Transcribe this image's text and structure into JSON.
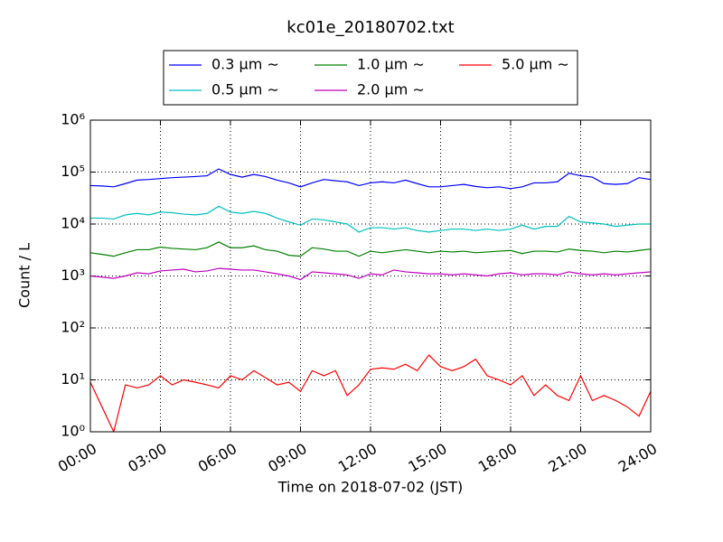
{
  "chart_data": {
    "type": "line",
    "title": "kc01e_20180702.txt",
    "xlabel": "Time on 2018-07-02 (JST)",
    "ylabel": "Count / L",
    "log_y": true,
    "grid": true,
    "legend": "upper center",
    "x": [
      0,
      0.5,
      1,
      1.5,
      2,
      2.5,
      3,
      3.5,
      4,
      4.5,
      5,
      5.5,
      6,
      6.5,
      7,
      7.5,
      8,
      8.5,
      9,
      9.5,
      10,
      10.5,
      11,
      11.5,
      12,
      12.5,
      13,
      13.5,
      14,
      14.5,
      15,
      15.5,
      16,
      16.5,
      17,
      17.5,
      18,
      18.5,
      19,
      19.5,
      20,
      20.5,
      21,
      21.5,
      22,
      22.5,
      23,
      23.5,
      24
    ],
    "xlim": [
      0,
      24
    ],
    "xticks": [
      {
        "value": 0,
        "label": "00:00"
      },
      {
        "value": 3,
        "label": "03:00"
      },
      {
        "value": 6,
        "label": "06:00"
      },
      {
        "value": 9,
        "label": "09:00"
      },
      {
        "value": 12,
        "label": "12:00"
      },
      {
        "value": 15,
        "label": "15:00"
      },
      {
        "value": 18,
        "label": "18:00"
      },
      {
        "value": 21,
        "label": "21:00"
      },
      {
        "value": 24,
        "label": "24:00"
      }
    ],
    "ylim": [
      1,
      1000000
    ],
    "yticks": [
      {
        "value": 1,
        "label": "10⁰"
      },
      {
        "value": 10,
        "label": "10¹"
      },
      {
        "value": 100,
        "label": "10²"
      },
      {
        "value": 1000,
        "label": "10³"
      },
      {
        "value": 10000,
        "label": "10⁴"
      },
      {
        "value": 100000,
        "label": "10⁵"
      },
      {
        "value": 1000000,
        "label": "10⁶"
      }
    ],
    "series": [
      {
        "name": "0.3 μm ∼",
        "color": "#0000ff",
        "values": [
          55000,
          54000,
          52000,
          60000,
          70000,
          72000,
          75000,
          78000,
          80000,
          82000,
          85000,
          115000,
          90000,
          80000,
          90000,
          82000,
          70000,
          62000,
          52000,
          62000,
          72000,
          68000,
          65000,
          55000,
          62000,
          65000,
          62000,
          70000,
          60000,
          52000,
          52000,
          55000,
          58000,
          53000,
          50000,
          52000,
          48000,
          52000,
          62000,
          62000,
          65000,
          95000,
          85000,
          80000,
          60000,
          58000,
          60000,
          78000,
          72000
        ]
      },
      {
        "name": "0.5 μm ∼",
        "color": "#00bfbf",
        "values": [
          13000,
          13000,
          12500,
          15000,
          16000,
          15000,
          17000,
          16500,
          15500,
          15000,
          16000,
          22000,
          17000,
          16000,
          17500,
          16000,
          13000,
          11000,
          9500,
          12500,
          12000,
          11000,
          10000,
          7000,
          8500,
          8500,
          8000,
          8500,
          7500,
          7000,
          7500,
          8000,
          8000,
          7500,
          8000,
          7500,
          8000,
          9500,
          8000,
          9000,
          9000,
          14000,
          11000,
          10500,
          10000,
          9000,
          9500,
          10000,
          10000
        ]
      },
      {
        "name": "1.0 μm ∼",
        "color": "#008000",
        "values": [
          2800,
          2600,
          2400,
          2800,
          3200,
          3200,
          3600,
          3400,
          3300,
          3200,
          3500,
          4500,
          3500,
          3500,
          3800,
          3200,
          3000,
          2500,
          2400,
          3500,
          3300,
          3000,
          3000,
          2400,
          3000,
          2800,
          3000,
          3200,
          3000,
          2800,
          3000,
          2900,
          3000,
          2800,
          2900,
          3000,
          3100,
          2700,
          3000,
          3000,
          2900,
          3300,
          3100,
          3000,
          2800,
          3000,
          2900,
          3100,
          3300
        ]
      },
      {
        "name": "2.0 μm ∼",
        "color": "#bf00bf",
        "values": [
          1000,
          950,
          900,
          1000,
          1150,
          1100,
          1250,
          1300,
          1350,
          1200,
          1250,
          1400,
          1350,
          1300,
          1300,
          1200,
          1100,
          1000,
          850,
          1200,
          1150,
          1100,
          1050,
          900,
          1100,
          1050,
          1300,
          1200,
          1150,
          1100,
          1100,
          1050,
          1100,
          1050,
          1000,
          1100,
          1150,
          1050,
          1100,
          1100,
          1050,
          1200,
          1100,
          1050,
          1100,
          1050,
          1100,
          1150,
          1200
        ]
      },
      {
        "name": "5.0 μm ∼",
        "color": "#ff0000",
        "values": [
          9,
          3,
          1,
          8,
          7,
          8,
          12,
          8,
          10,
          9,
          8,
          7,
          12,
          10,
          15,
          11,
          8,
          9,
          6,
          15,
          12,
          15,
          5,
          8,
          16,
          17,
          16,
          20,
          15,
          30,
          18,
          15,
          18,
          25,
          12,
          10,
          8,
          12,
          5,
          8,
          5,
          4,
          12,
          4,
          5,
          4,
          3,
          2,
          6
        ]
      }
    ]
  }
}
